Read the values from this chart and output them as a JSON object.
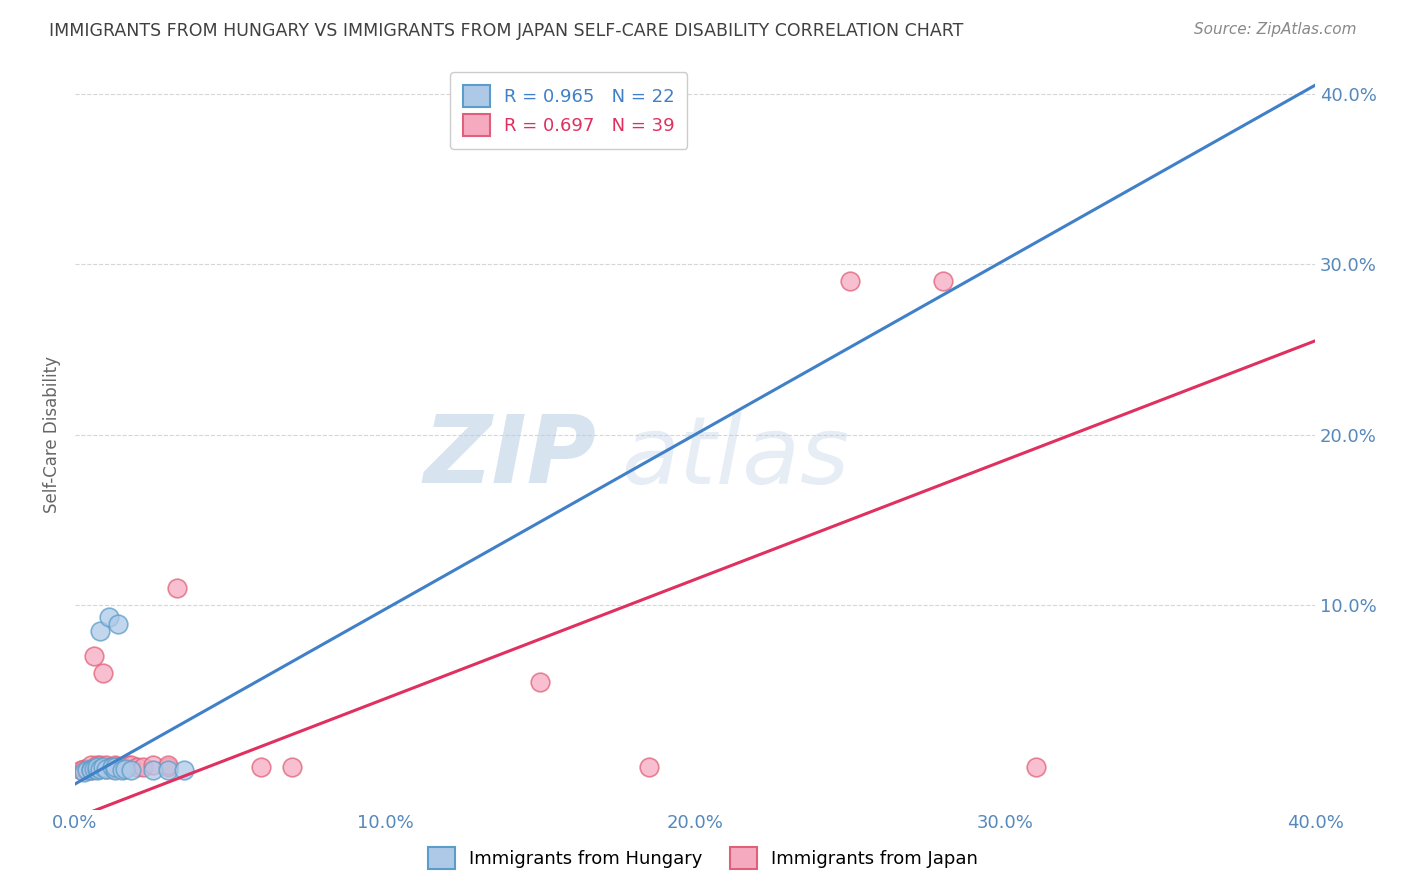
{
  "title": "IMMIGRANTS FROM HUNGARY VS IMMIGRANTS FROM JAPAN SELF-CARE DISABILITY CORRELATION CHART",
  "source": "Source: ZipAtlas.com",
  "ylabel": "Self-Care Disability",
  "xlim": [
    0.0,
    0.4
  ],
  "ylim": [
    -0.02,
    0.42
  ],
  "xtick_labels": [
    "0.0%",
    "10.0%",
    "20.0%",
    "30.0%",
    "40.0%"
  ],
  "xtick_vals": [
    0.0,
    0.1,
    0.2,
    0.3,
    0.4
  ],
  "ytick_labels": [
    "10.0%",
    "20.0%",
    "30.0%",
    "40.0%"
  ],
  "ytick_vals": [
    0.1,
    0.2,
    0.3,
    0.4
  ],
  "hungary_color": "#aec9e8",
  "hungary_edge": "#5b9dc9",
  "japan_color": "#f5aabf",
  "japan_edge": "#e0607a",
  "line_hungary_color": "#4080c8",
  "line_japan_color": "#e03060",
  "hungary_R": 0.965,
  "hungary_N": 22,
  "japan_R": 0.697,
  "japan_N": 39,
  "watermark_zip": "ZIP",
  "watermark_atlas": "atlas",
  "background_color": "#ffffff",
  "grid_color": "#cccccc",
  "title_color": "#404040",
  "axis_label_color": "#5588bb",
  "hungary_line_x0": 0.0,
  "hungary_line_y0": -0.005,
  "hungary_line_x1": 0.4,
  "hungary_line_y1": 0.405,
  "japan_line_x0": 0.0,
  "japan_line_y0": -0.025,
  "japan_line_x1": 0.4,
  "japan_line_y1": 0.255,
  "hungary_points_x": [
    0.003,
    0.004,
    0.005,
    0.005,
    0.006,
    0.007,
    0.007,
    0.008,
    0.008,
    0.009,
    0.01,
    0.011,
    0.012,
    0.013,
    0.013,
    0.014,
    0.015,
    0.016,
    0.018,
    0.025,
    0.03,
    0.035
  ],
  "hungary_points_y": [
    0.002,
    0.003,
    0.004,
    0.003,
    0.004,
    0.003,
    0.005,
    0.004,
    0.085,
    0.005,
    0.004,
    0.093,
    0.005,
    0.003,
    0.005,
    0.089,
    0.003,
    0.004,
    0.003,
    0.003,
    0.003,
    0.003
  ],
  "japan_points_x": [
    0.002,
    0.003,
    0.004,
    0.005,
    0.005,
    0.006,
    0.006,
    0.007,
    0.007,
    0.007,
    0.008,
    0.008,
    0.009,
    0.009,
    0.01,
    0.01,
    0.011,
    0.012,
    0.012,
    0.013,
    0.013,
    0.014,
    0.015,
    0.016,
    0.017,
    0.018,
    0.02,
    0.022,
    0.025,
    0.03,
    0.03,
    0.033,
    0.06,
    0.07,
    0.15,
    0.185,
    0.25,
    0.28,
    0.31
  ],
  "japan_points_y": [
    0.003,
    0.004,
    0.004,
    0.006,
    0.003,
    0.004,
    0.07,
    0.004,
    0.005,
    0.006,
    0.005,
    0.006,
    0.005,
    0.06,
    0.004,
    0.006,
    0.005,
    0.004,
    0.005,
    0.006,
    0.005,
    0.005,
    0.005,
    0.005,
    0.006,
    0.006,
    0.005,
    0.005,
    0.006,
    0.005,
    0.006,
    0.11,
    0.005,
    0.005,
    0.055,
    0.005,
    0.29,
    0.29,
    0.005
  ]
}
